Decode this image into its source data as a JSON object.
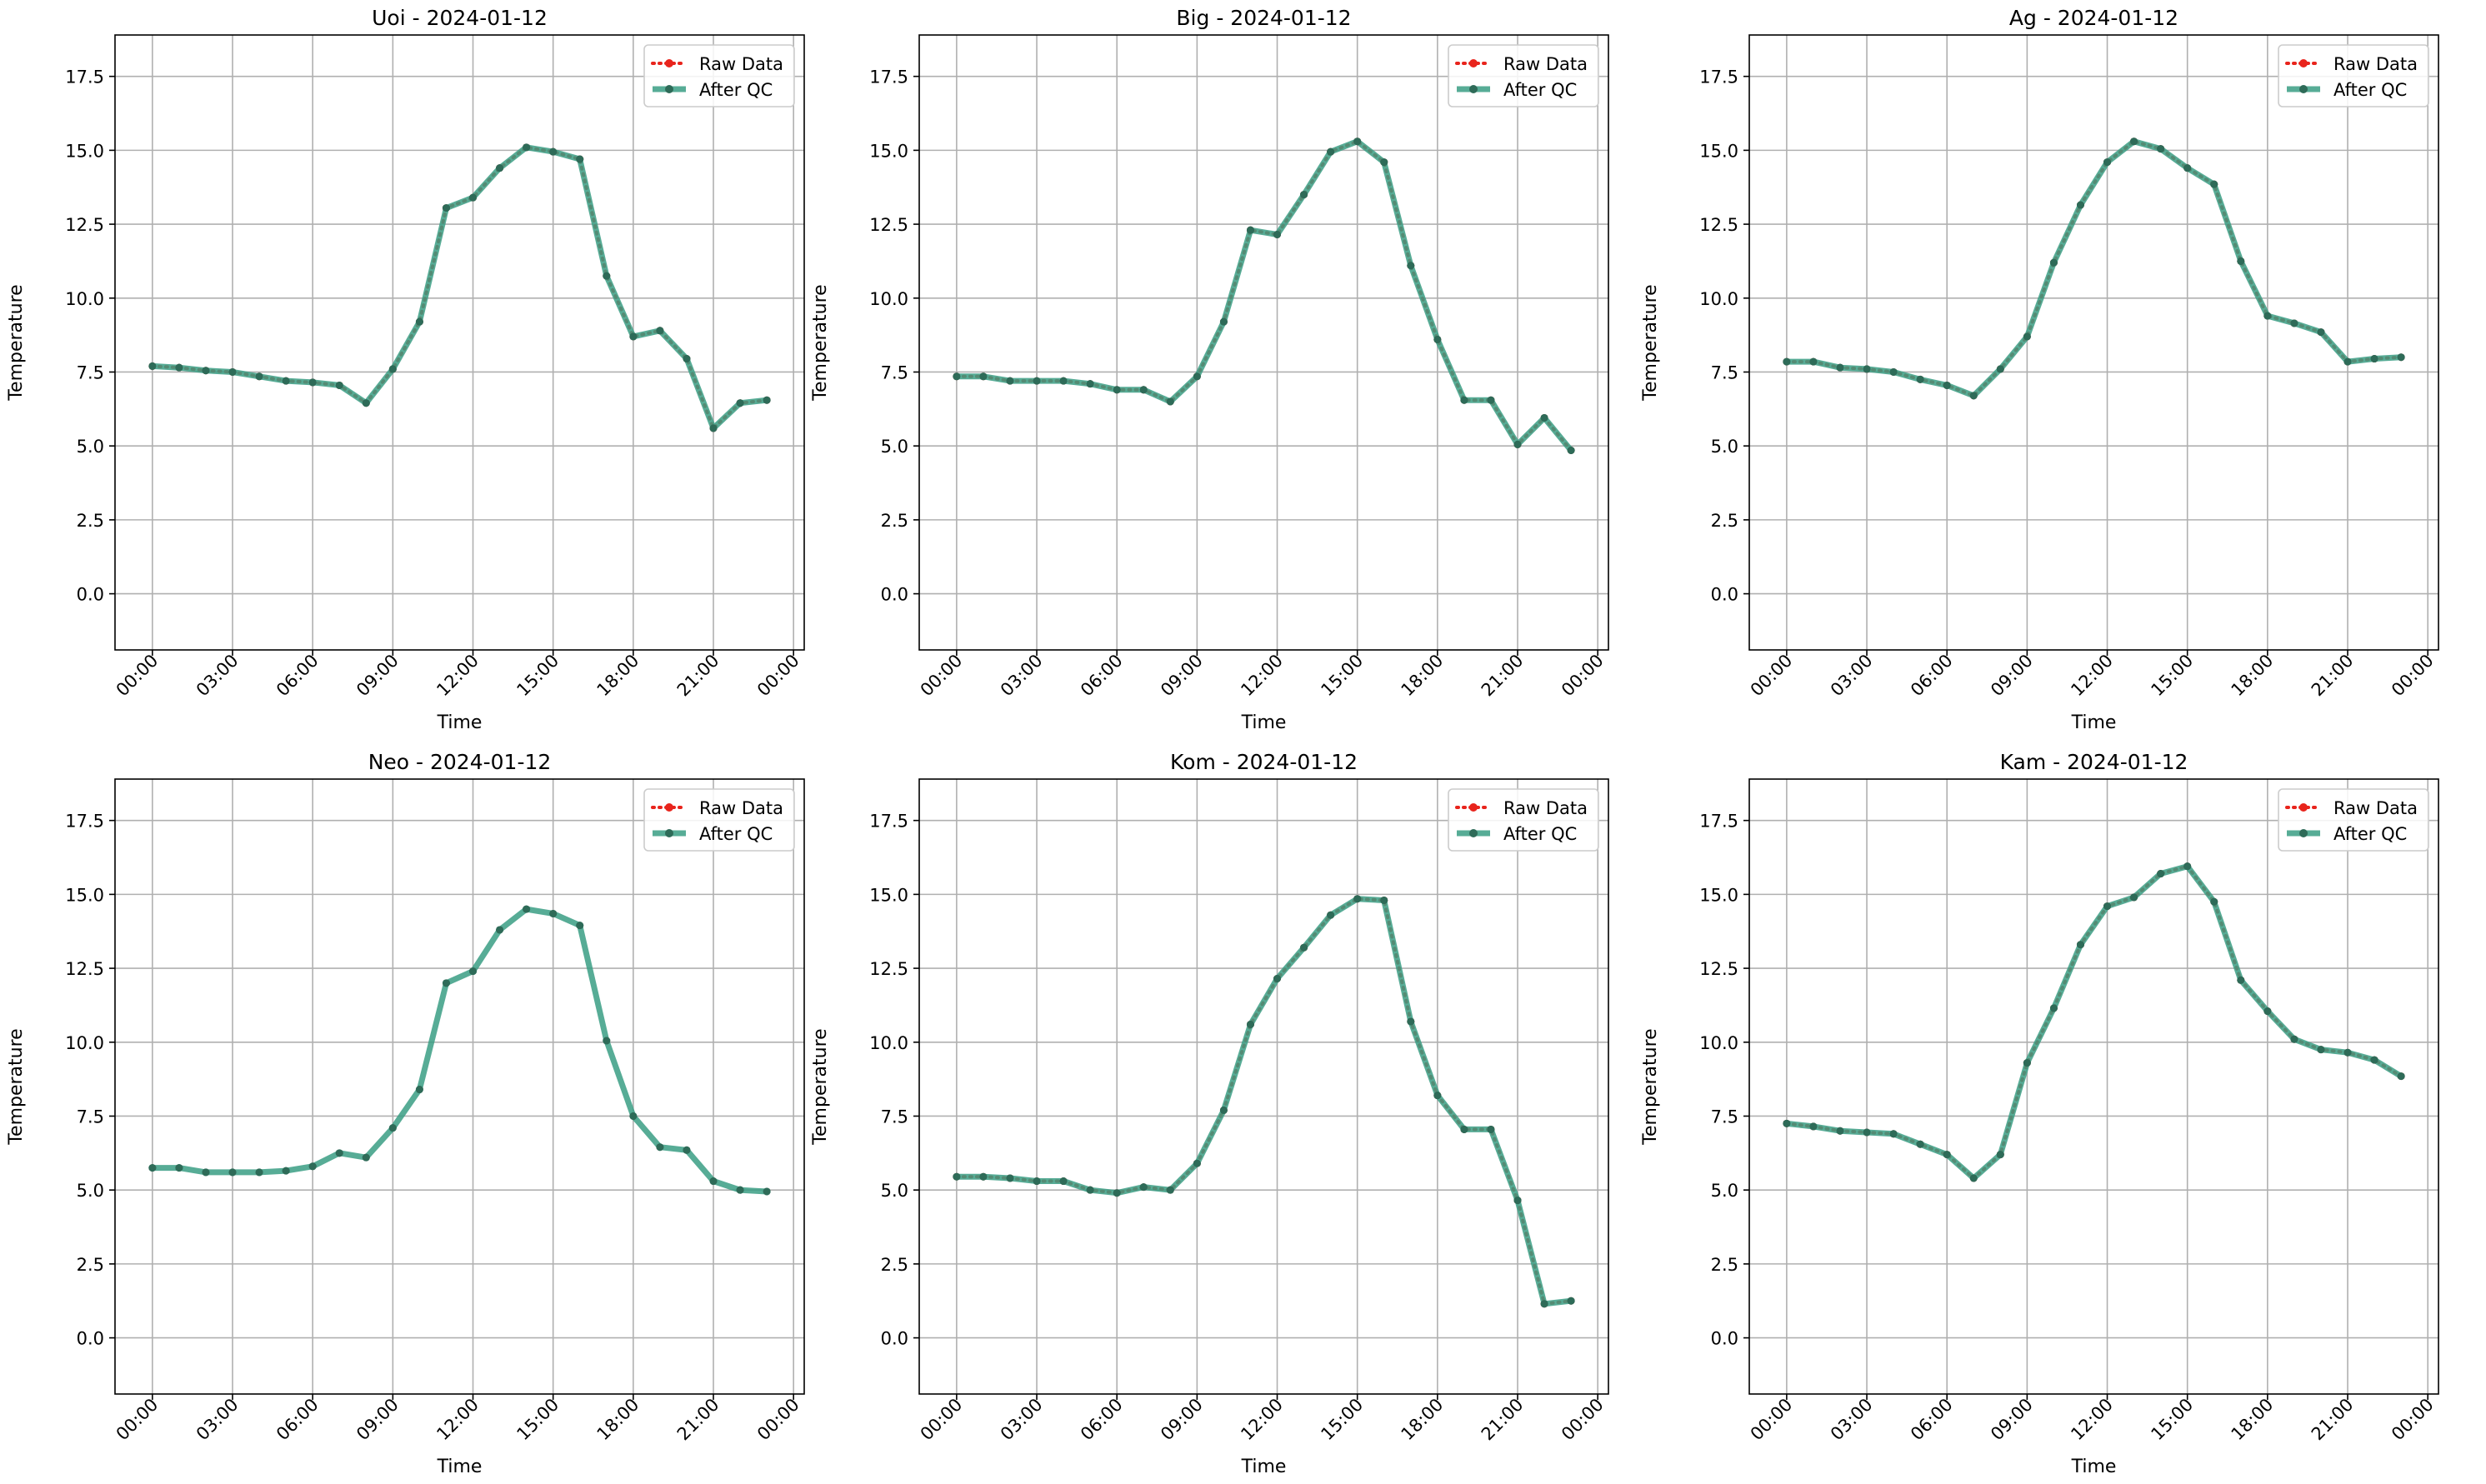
{
  "figure": {
    "x_ticks": [
      "00:00",
      "03:00",
      "06:00",
      "09:00",
      "12:00",
      "15:00",
      "18:00",
      "21:00",
      "00:00"
    ],
    "y_ticks": [
      "0.0",
      "2.5",
      "5.0",
      "7.5",
      "10.0",
      "12.5",
      "15.0",
      "17.5"
    ],
    "legend": {
      "raw_label": "Raw Data",
      "qc_label": "After QC"
    },
    "colors": {
      "raw": "#e8241c",
      "qc": "#3a9e84",
      "marker": "#2e6b58",
      "grid": "#b0b0b0"
    }
  },
  "chart_data": [
    {
      "type": "line",
      "title": "Uoi - 2024-01-12",
      "xlabel": "Time",
      "ylabel": "Temperature",
      "xlim": [
        "2024-01-11 22:36",
        "2024-01-13 00:24"
      ],
      "ylim": [
        -1.9,
        18.9
      ],
      "grid": true,
      "legend_position": "upper right",
      "x": [
        "00:00",
        "01:00",
        "02:00",
        "03:00",
        "04:00",
        "05:00",
        "06:00",
        "07:00",
        "08:00",
        "09:00",
        "10:00",
        "11:00",
        "12:00",
        "13:00",
        "14:00",
        "15:00",
        "16:00",
        "17:00",
        "18:00",
        "19:00",
        "20:00",
        "21:00",
        "22:00",
        "23:00"
      ],
      "series": [
        {
          "name": "Raw Data",
          "values": [
            7.7,
            7.65,
            7.55,
            7.5,
            7.35,
            7.2,
            7.15,
            7.05,
            6.45,
            7.6,
            9.2,
            13.05,
            13.4,
            14.4,
            15.1,
            14.95,
            14.7,
            10.75,
            8.7,
            8.9,
            7.95,
            5.6,
            6.45,
            6.55
          ]
        },
        {
          "name": "After QC",
          "values": [
            7.7,
            7.65,
            7.55,
            7.5,
            7.35,
            7.2,
            7.15,
            7.05,
            6.45,
            7.6,
            9.2,
            13.05,
            13.4,
            14.4,
            15.1,
            14.95,
            14.7,
            10.75,
            8.7,
            8.9,
            7.95,
            5.6,
            6.45,
            6.55
          ]
        }
      ]
    },
    {
      "type": "line",
      "title": "Big - 2024-01-12",
      "xlabel": "Time",
      "ylabel": "Temperature",
      "xlim": [
        "2024-01-11 22:36",
        "2024-01-13 00:24"
      ],
      "ylim": [
        -1.9,
        18.9
      ],
      "grid": true,
      "legend_position": "upper right",
      "x": [
        "00:00",
        "01:00",
        "02:00",
        "03:00",
        "04:00",
        "05:00",
        "06:00",
        "07:00",
        "08:00",
        "09:00",
        "10:00",
        "11:00",
        "12:00",
        "13:00",
        "14:00",
        "15:00",
        "16:00",
        "17:00",
        "18:00",
        "19:00",
        "20:00",
        "21:00",
        "22:00",
        "23:00"
      ],
      "series": [
        {
          "name": "Raw Data",
          "values": [
            7.35,
            7.35,
            7.2,
            7.2,
            7.2,
            7.1,
            6.9,
            6.9,
            6.5,
            7.35,
            9.2,
            12.3,
            12.15,
            13.5,
            14.95,
            15.3,
            14.6,
            11.1,
            8.6,
            6.55,
            6.55,
            5.05,
            5.95,
            4.85
          ]
        },
        {
          "name": "After QC",
          "values": [
            7.35,
            7.35,
            7.2,
            7.2,
            7.2,
            7.1,
            6.9,
            6.9,
            6.5,
            7.35,
            9.2,
            12.3,
            12.15,
            13.5,
            14.95,
            15.3,
            14.6,
            11.1,
            8.6,
            6.55,
            6.55,
            5.05,
            5.95,
            4.85
          ]
        }
      ]
    },
    {
      "type": "line",
      "title": "Ag - 2024-01-12",
      "xlabel": "Time",
      "ylabel": "Temperature",
      "xlim": [
        "2024-01-11 22:36",
        "2024-01-13 00:24"
      ],
      "ylim": [
        -1.9,
        18.9
      ],
      "grid": true,
      "legend_position": "upper right",
      "x": [
        "00:00",
        "01:00",
        "02:00",
        "03:00",
        "04:00",
        "05:00",
        "06:00",
        "07:00",
        "08:00",
        "09:00",
        "10:00",
        "11:00",
        "12:00",
        "13:00",
        "14:00",
        "15:00",
        "16:00",
        "17:00",
        "18:00",
        "19:00",
        "20:00",
        "21:00",
        "22:00",
        "23:00"
      ],
      "series": [
        {
          "name": "Raw Data",
          "values": [
            7.85,
            7.85,
            7.65,
            7.6,
            7.5,
            7.25,
            7.05,
            6.7,
            7.6,
            8.7,
            11.2,
            13.15,
            14.6,
            15.3,
            15.05,
            14.4,
            13.85,
            11.25,
            9.4,
            9.15,
            8.85,
            7.85,
            7.95,
            8.0
          ]
        },
        {
          "name": "After QC",
          "values": [
            7.85,
            7.85,
            7.65,
            7.6,
            7.5,
            7.25,
            7.05,
            6.7,
            7.6,
            8.7,
            11.2,
            13.15,
            14.6,
            15.3,
            15.05,
            14.4,
            13.85,
            11.25,
            9.4,
            9.15,
            8.85,
            7.85,
            7.95,
            8.0
          ]
        }
      ]
    },
    {
      "type": "line",
      "title": "Neo - 2024-01-12",
      "xlabel": "Time",
      "ylabel": "Temperature",
      "xlim": [
        "2024-01-11 22:36",
        "2024-01-13 00:24"
      ],
      "ylim": [
        -1.9,
        18.9
      ],
      "grid": true,
      "legend_position": "upper right",
      "x": [
        "00:00",
        "01:00",
        "02:00",
        "03:00",
        "04:00",
        "05:00",
        "06:00",
        "07:00",
        "08:00",
        "09:00",
        "10:00",
        "11:00",
        "12:00",
        "13:00",
        "14:00",
        "15:00",
        "16:00",
        "17:00",
        "18:00",
        "19:00",
        "20:00",
        "21:00",
        "22:00",
        "23:00"
      ],
      "series": [
        {
          "name": "After QC",
          "values": [
            5.75,
            5.75,
            5.6,
            5.6,
            5.6,
            5.65,
            5.8,
            6.25,
            6.1,
            7.1,
            8.4,
            12.0,
            12.4,
            13.8,
            14.5,
            14.35,
            13.95,
            10.05,
            7.5,
            6.45,
            6.35,
            5.3,
            5.0,
            4.95
          ]
        }
      ]
    },
    {
      "type": "line",
      "title": "Kom - 2024-01-12",
      "xlabel": "Time",
      "ylabel": "Temperature",
      "xlim": [
        "2024-01-11 22:36",
        "2024-01-13 00:24"
      ],
      "ylim": [
        -1.9,
        18.9
      ],
      "grid": true,
      "legend_position": "upper right",
      "x": [
        "00:00",
        "01:00",
        "02:00",
        "03:00",
        "04:00",
        "05:00",
        "06:00",
        "07:00",
        "08:00",
        "09:00",
        "10:00",
        "11:00",
        "12:00",
        "13:00",
        "14:00",
        "15:00",
        "16:00",
        "17:00",
        "18:00",
        "19:00",
        "20:00",
        "21:00",
        "22:00",
        "23:00"
      ],
      "series": [
        {
          "name": "Raw Data",
          "values": [
            5.45,
            5.45,
            5.4,
            5.3,
            5.3,
            5.0,
            4.9,
            5.1,
            5.0,
            5.9,
            7.7,
            10.6,
            12.15,
            13.2,
            14.3,
            14.85,
            14.8,
            10.7,
            8.2,
            7.05,
            7.05,
            4.65,
            1.15,
            1.25
          ]
        },
        {
          "name": "After QC",
          "values": [
            5.45,
            5.45,
            5.4,
            5.3,
            5.3,
            5.0,
            4.9,
            5.1,
            5.0,
            5.9,
            7.7,
            10.6,
            12.15,
            13.2,
            14.3,
            14.85,
            14.8,
            10.7,
            8.2,
            7.05,
            7.05,
            4.65,
            1.15,
            1.25
          ]
        }
      ]
    },
    {
      "type": "line",
      "title": "Kam - 2024-01-12",
      "xlabel": "Time",
      "ylabel": "Temperature",
      "xlim": [
        "2024-01-11 22:36",
        "2024-01-13 00:24"
      ],
      "ylim": [
        -1.9,
        18.9
      ],
      "grid": true,
      "legend_position": "upper right",
      "x": [
        "00:00",
        "01:00",
        "02:00",
        "03:00",
        "04:00",
        "05:00",
        "06:00",
        "07:00",
        "08:00",
        "09:00",
        "10:00",
        "11:00",
        "12:00",
        "13:00",
        "14:00",
        "15:00",
        "16:00",
        "17:00",
        "18:00",
        "19:00",
        "20:00",
        "21:00",
        "22:00",
        "23:00"
      ],
      "series": [
        {
          "name": "Raw Data",
          "values": [
            7.25,
            7.15,
            7.0,
            6.95,
            6.9,
            6.55,
            6.2,
            5.4,
            6.2,
            9.3,
            11.15,
            13.3,
            14.6,
            14.9,
            15.7,
            15.95,
            14.75,
            12.1,
            11.05,
            10.1,
            9.75,
            9.65,
            9.4,
            8.85
          ]
        },
        {
          "name": "After QC",
          "values": [
            7.25,
            7.15,
            7.0,
            6.95,
            6.9,
            6.55,
            6.2,
            5.4,
            6.2,
            9.3,
            11.15,
            13.3,
            14.6,
            14.9,
            15.7,
            15.95,
            14.75,
            12.1,
            11.05,
            10.1,
            9.75,
            9.65,
            9.4,
            8.85
          ]
        }
      ]
    }
  ]
}
